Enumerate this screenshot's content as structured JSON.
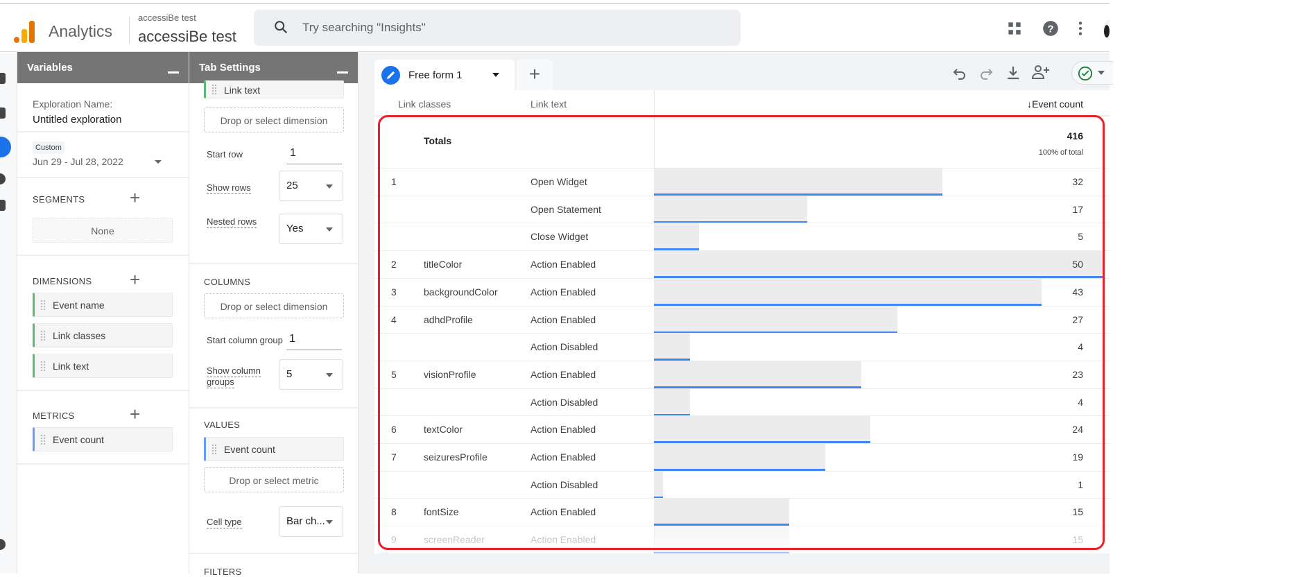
{
  "header": {
    "app_name": "Analytics",
    "account_small": "accessiBe test",
    "account_large": "accessiBe test",
    "search_placeholder": "Try searching \"Insights\""
  },
  "variables": {
    "title": "Variables",
    "exploration_label": "Exploration Name:",
    "exploration_name": "Untitled exploration",
    "date_chip": "Custom",
    "date_range": "Jun 29 - Jul 28, 2022",
    "segments_label": "SEGMENTS",
    "segments_none": "None",
    "dimensions_label": "DIMENSIONS",
    "dimensions": [
      "Event name",
      "Link classes",
      "Link text"
    ],
    "metrics_label": "METRICS",
    "metrics": [
      "Event count"
    ]
  },
  "tab_settings": {
    "title": "Tab Settings",
    "row_item": "Link text",
    "drop_dimension": "Drop or select dimension",
    "start_row_label": "Start row",
    "start_row": "1",
    "show_rows_label": "Show rows",
    "show_rows": "25",
    "nested_rows_label": "Nested rows",
    "nested_rows": "Yes",
    "columns_label": "COLUMNS",
    "drop_column": "Drop or select dimension",
    "start_col_label": "Start column group",
    "start_col": "1",
    "show_col_label1": "Show column",
    "show_col_label2": "groups",
    "show_col": "5",
    "values_label": "VALUES",
    "value_item": "Event count",
    "drop_metric": "Drop or select metric",
    "cell_type_label": "Cell type",
    "cell_type": "Bar ch...",
    "filters_label": "FILTERS"
  },
  "tabs": {
    "active": "Free form 1"
  },
  "colors": {
    "bar": "#4285f4",
    "bar_bg": "#ececec",
    "highlight": "#e8202a",
    "panel_header": "#757575"
  },
  "table": {
    "headers": {
      "col1": "Link classes",
      "col2": "Link text",
      "metric": "↓Event count"
    },
    "totals": {
      "label": "Totals",
      "value": "416",
      "pct": "100% of total"
    },
    "max": 50,
    "rows": [
      {
        "idx": "1",
        "cls": "",
        "text": "Open Widget",
        "value": 32
      },
      {
        "idx": "",
        "cls": "",
        "text": "Open Statement",
        "value": 17
      },
      {
        "idx": "",
        "cls": "",
        "text": "Close Widget",
        "value": 5
      },
      {
        "idx": "2",
        "cls": "titleColor",
        "text": "Action Enabled",
        "value": 50
      },
      {
        "idx": "3",
        "cls": "backgroundColor",
        "text": "Action Enabled",
        "value": 43
      },
      {
        "idx": "4",
        "cls": "adhdProfile",
        "text": "Action Enabled",
        "value": 27
      },
      {
        "idx": "",
        "cls": "",
        "text": "Action Disabled",
        "value": 4
      },
      {
        "idx": "5",
        "cls": "visionProfile",
        "text": "Action Enabled",
        "value": 23
      },
      {
        "idx": "",
        "cls": "",
        "text": "Action Disabled",
        "value": 4
      },
      {
        "idx": "6",
        "cls": "textColor",
        "text": "Action Enabled",
        "value": 24
      },
      {
        "idx": "7",
        "cls": "seizuresProfile",
        "text": "Action Enabled",
        "value": 19
      },
      {
        "idx": "",
        "cls": "",
        "text": "Action Disabled",
        "value": 1
      },
      {
        "idx": "8",
        "cls": "fontSize",
        "text": "Action Enabled",
        "value": 15
      },
      {
        "idx": "9",
        "cls": "screenReader",
        "text": "Action Enabled",
        "value": 15
      }
    ]
  }
}
